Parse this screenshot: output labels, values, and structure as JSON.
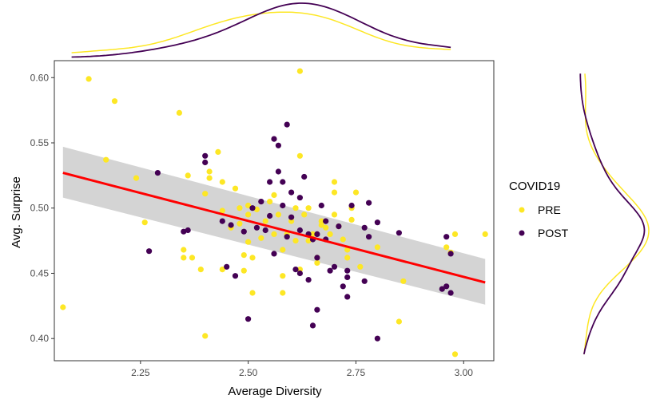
{
  "chart_data": {
    "type": "scatter",
    "title": "",
    "xlabel": "Average Diversity",
    "ylabel": "Avg. Surprise",
    "xlim": [
      2.05,
      3.07
    ],
    "ylim": [
      0.383,
      0.613
    ],
    "xticks": [
      2.25,
      2.5,
      2.75,
      3.0
    ],
    "xtick_labels": [
      "2.25",
      "2.50",
      "2.75",
      "3.00"
    ],
    "yticks": [
      0.4,
      0.45,
      0.5,
      0.55,
      0.6
    ],
    "ytick_labels": [
      "0.40",
      "0.45",
      "0.50",
      "0.55",
      "0.60"
    ],
    "grid": false,
    "legend": {
      "title": "COVID19",
      "position": "right"
    },
    "colors": {
      "PRE": "#FDE725",
      "POST": "#440154",
      "fit": "#FF0000",
      "band": "#CCCCCC"
    },
    "series": [
      {
        "name": "PRE",
        "points": [
          [
            2.07,
            0.424
          ],
          [
            2.13,
            0.599
          ],
          [
            2.17,
            0.537
          ],
          [
            2.19,
            0.582
          ],
          [
            2.24,
            0.523
          ],
          [
            2.26,
            0.489
          ],
          [
            2.34,
            0.573
          ],
          [
            2.35,
            0.462
          ],
          [
            2.35,
            0.468
          ],
          [
            2.36,
            0.525
          ],
          [
            2.37,
            0.462
          ],
          [
            2.39,
            0.453
          ],
          [
            2.4,
            0.511
          ],
          [
            2.4,
            0.402
          ],
          [
            2.41,
            0.523
          ],
          [
            2.41,
            0.528
          ],
          [
            2.43,
            0.543
          ],
          [
            2.44,
            0.52
          ],
          [
            2.44,
            0.498
          ],
          [
            2.44,
            0.453
          ],
          [
            2.46,
            0.485
          ],
          [
            2.47,
            0.515
          ],
          [
            2.48,
            0.5
          ],
          [
            2.48,
            0.488
          ],
          [
            2.49,
            0.464
          ],
          [
            2.49,
            0.452
          ],
          [
            2.5,
            0.502
          ],
          [
            2.5,
            0.495
          ],
          [
            2.5,
            0.474
          ],
          [
            2.51,
            0.435
          ],
          [
            2.51,
            0.462
          ],
          [
            2.52,
            0.499
          ],
          [
            2.53,
            0.477
          ],
          [
            2.54,
            0.49
          ],
          [
            2.55,
            0.505
          ],
          [
            2.56,
            0.51
          ],
          [
            2.56,
            0.48
          ],
          [
            2.57,
            0.495
          ],
          [
            2.58,
            0.435
          ],
          [
            2.58,
            0.448
          ],
          [
            2.58,
            0.468
          ],
          [
            2.59,
            0.48
          ],
          [
            2.6,
            0.49
          ],
          [
            2.61,
            0.5
          ],
          [
            2.61,
            0.475
          ],
          [
            2.62,
            0.453
          ],
          [
            2.62,
            0.54
          ],
          [
            2.62,
            0.605
          ],
          [
            2.63,
            0.495
          ],
          [
            2.64,
            0.5
          ],
          [
            2.64,
            0.475
          ],
          [
            2.65,
            0.48
          ],
          [
            2.66,
            0.462
          ],
          [
            2.66,
            0.458
          ],
          [
            2.67,
            0.49
          ],
          [
            2.67,
            0.487
          ],
          [
            2.68,
            0.485
          ],
          [
            2.69,
            0.48
          ],
          [
            2.7,
            0.52
          ],
          [
            2.7,
            0.512
          ],
          [
            2.7,
            0.495
          ],
          [
            2.71,
            0.486
          ],
          [
            2.72,
            0.476
          ],
          [
            2.73,
            0.468
          ],
          [
            2.73,
            0.462
          ],
          [
            2.74,
            0.5
          ],
          [
            2.74,
            0.491
          ],
          [
            2.75,
            0.512
          ],
          [
            2.76,
            0.455
          ],
          [
            2.8,
            0.47
          ],
          [
            2.85,
            0.413
          ],
          [
            2.86,
            0.444
          ],
          [
            2.96,
            0.47
          ],
          [
            2.97,
            0.466
          ],
          [
            2.98,
            0.48
          ],
          [
            2.98,
            0.388
          ],
          [
            3.05,
            0.48
          ]
        ]
      },
      {
        "name": "POST",
        "points": [
          [
            2.27,
            0.467
          ],
          [
            2.29,
            0.527
          ],
          [
            2.35,
            0.482
          ],
          [
            2.36,
            0.483
          ],
          [
            2.4,
            0.54
          ],
          [
            2.4,
            0.535
          ],
          [
            2.44,
            0.49
          ],
          [
            2.45,
            0.455
          ],
          [
            2.46,
            0.487
          ],
          [
            2.47,
            0.448
          ],
          [
            2.49,
            0.482
          ],
          [
            2.5,
            0.415
          ],
          [
            2.51,
            0.5
          ],
          [
            2.52,
            0.485
          ],
          [
            2.53,
            0.505
          ],
          [
            2.54,
            0.483
          ],
          [
            2.55,
            0.52
          ],
          [
            2.55,
            0.494
          ],
          [
            2.56,
            0.553
          ],
          [
            2.56,
            0.465
          ],
          [
            2.57,
            0.548
          ],
          [
            2.57,
            0.528
          ],
          [
            2.58,
            0.52
          ],
          [
            2.58,
            0.502
          ],
          [
            2.59,
            0.564
          ],
          [
            2.59,
            0.478
          ],
          [
            2.6,
            0.512
          ],
          [
            2.6,
            0.493
          ],
          [
            2.61,
            0.453
          ],
          [
            2.62,
            0.45
          ],
          [
            2.62,
            0.508
          ],
          [
            2.62,
            0.483
          ],
          [
            2.63,
            0.524
          ],
          [
            2.64,
            0.445
          ],
          [
            2.64,
            0.48
          ],
          [
            2.65,
            0.41
          ],
          [
            2.65,
            0.476
          ],
          [
            2.66,
            0.48
          ],
          [
            2.66,
            0.462
          ],
          [
            2.66,
            0.422
          ],
          [
            2.67,
            0.502
          ],
          [
            2.68,
            0.49
          ],
          [
            2.68,
            0.476
          ],
          [
            2.69,
            0.452
          ],
          [
            2.7,
            0.455
          ],
          [
            2.71,
            0.486
          ],
          [
            2.72,
            0.44
          ],
          [
            2.73,
            0.452
          ],
          [
            2.73,
            0.447
          ],
          [
            2.73,
            0.432
          ],
          [
            2.74,
            0.502
          ],
          [
            2.77,
            0.444
          ],
          [
            2.77,
            0.485
          ],
          [
            2.78,
            0.478
          ],
          [
            2.78,
            0.504
          ],
          [
            2.8,
            0.489
          ],
          [
            2.8,
            0.4
          ],
          [
            2.85,
            0.481
          ],
          [
            2.95,
            0.438
          ],
          [
            2.96,
            0.44
          ],
          [
            2.96,
            0.478
          ],
          [
            2.97,
            0.435
          ],
          [
            2.97,
            0.465
          ]
        ]
      }
    ],
    "fit_line": {
      "x": [
        2.07,
        3.05
      ],
      "y": [
        0.527,
        0.443
      ],
      "ci_lower": [
        0.508,
        0.426
      ],
      "ci_upper": [
        0.547,
        0.461
      ]
    }
  }
}
